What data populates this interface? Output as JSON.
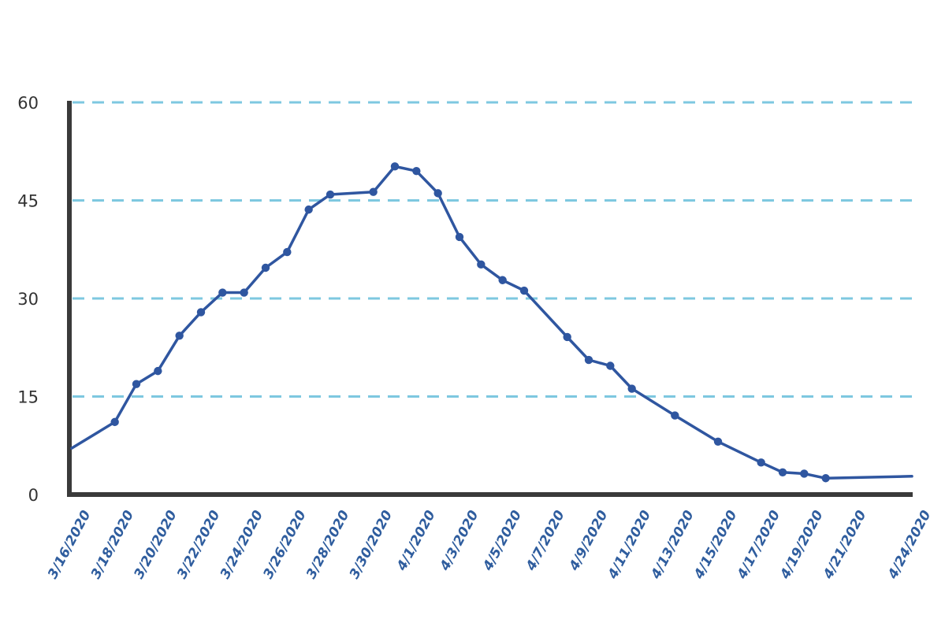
{
  "chart_data": {
    "type": "line",
    "title": "",
    "xlabel": "",
    "ylabel": "",
    "ylim": [
      0,
      60
    ],
    "yticks": [
      0,
      15,
      30,
      45,
      60
    ],
    "grid": "horizontal dashed",
    "colors": {
      "line": "#2f56a0",
      "grid": "#7ec8e0",
      "axis": "#3a3a3a",
      "tick_label_x": "#2f5d9e",
      "tick_label_y": "#333333"
    },
    "x_tick_labels": [
      "3/16/2020",
      "3/18/2020",
      "3/20/2020",
      "3/22/2020",
      "3/24/2020",
      "3/26/2020",
      "3/28/2020",
      "3/30/2020",
      "4/1/2020",
      "4/3/2020",
      "4/5/2020",
      "4/7/2020",
      "4/9/2020",
      "4/11/2020",
      "4/13/2020",
      "4/15/2020",
      "4/17/2020",
      "4/19/2020",
      "4/21/2020",
      "4/24/2020"
    ],
    "series": [
      {
        "points": [
          {
            "x": "3/16/2020",
            "y": 7.1,
            "marker": false
          },
          {
            "x": "3/18/2020",
            "y": 11.1,
            "marker": true
          },
          {
            "x": "3/19/2020",
            "y": 16.9,
            "marker": true
          },
          {
            "x": "3/20/2020",
            "y": 18.9,
            "marker": true
          },
          {
            "x": "3/21/2020",
            "y": 24.3,
            "marker": true
          },
          {
            "x": "3/22/2020",
            "y": 27.9,
            "marker": true
          },
          {
            "x": "3/23/2020",
            "y": 30.9,
            "marker": true
          },
          {
            "x": "3/24/2020",
            "y": 30.9,
            "marker": true
          },
          {
            "x": "3/25/2020",
            "y": 34.7,
            "marker": true
          },
          {
            "x": "3/26/2020",
            "y": 37.1,
            "marker": true
          },
          {
            "x": "3/27/2020",
            "y": 43.6,
            "marker": true
          },
          {
            "x": "3/28/2020",
            "y": 45.9,
            "marker": true
          },
          {
            "x": "3/30/2020",
            "y": 46.3,
            "marker": true
          },
          {
            "x": "3/31/2020",
            "y": 50.2,
            "marker": true
          },
          {
            "x": "4/1/2020",
            "y": 49.5,
            "marker": true
          },
          {
            "x": "4/2/2020",
            "y": 46.1,
            "marker": true
          },
          {
            "x": "4/3/2020",
            "y": 39.4,
            "marker": true
          },
          {
            "x": "4/4/2020",
            "y": 35.2,
            "marker": true
          },
          {
            "x": "4/5/2020",
            "y": 32.8,
            "marker": true
          },
          {
            "x": "4/6/2020",
            "y": 31.2,
            "marker": true
          },
          {
            "x": "4/8/2020",
            "y": 24.1,
            "marker": true
          },
          {
            "x": "4/9/2020",
            "y": 20.6,
            "marker": true
          },
          {
            "x": "4/10/2020",
            "y": 19.7,
            "marker": true
          },
          {
            "x": "4/11/2020",
            "y": 16.2,
            "marker": true
          },
          {
            "x": "4/13/2020",
            "y": 12.1,
            "marker": true
          },
          {
            "x": "4/15/2020",
            "y": 8.1,
            "marker": true
          },
          {
            "x": "4/17/2020",
            "y": 4.9,
            "marker": true
          },
          {
            "x": "4/18/2020",
            "y": 3.4,
            "marker": true
          },
          {
            "x": "4/19/2020",
            "y": 3.2,
            "marker": true
          },
          {
            "x": "4/20/2020",
            "y": 2.5,
            "marker": true
          },
          {
            "x": "4/24/2020",
            "y": 2.8,
            "marker": false
          }
        ]
      }
    ]
  }
}
